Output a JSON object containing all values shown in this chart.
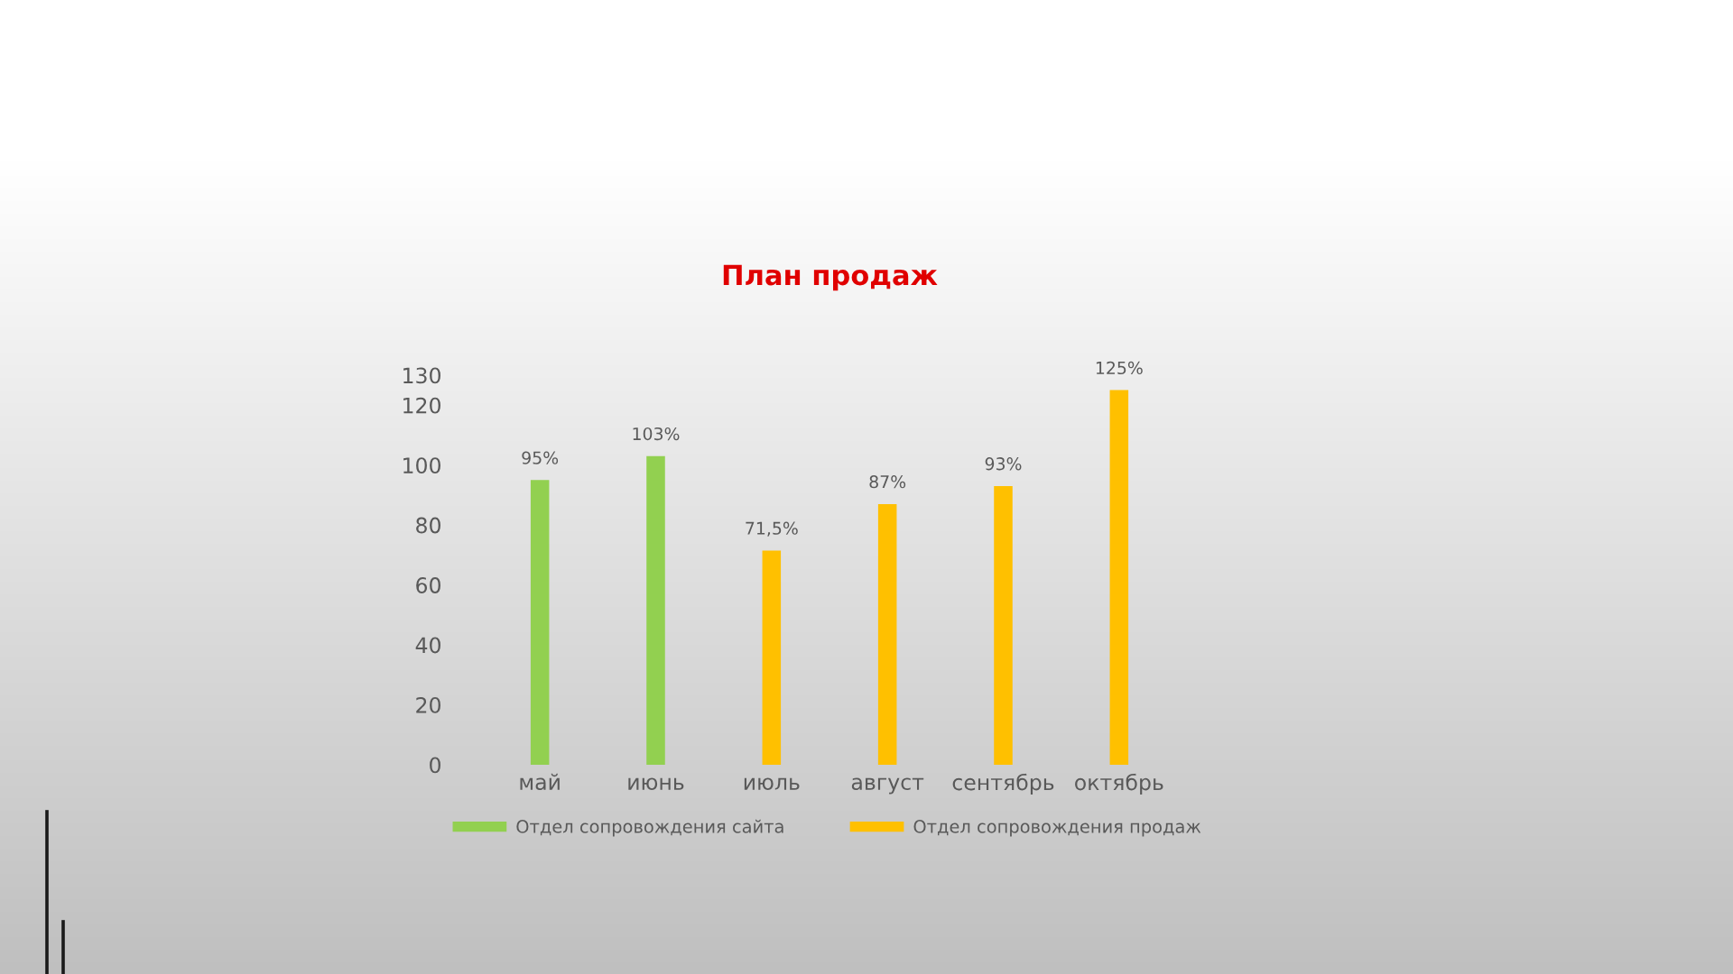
{
  "chart_data": {
    "type": "bar",
    "title": "План продаж",
    "categories": [
      "май",
      "июнь",
      "июль",
      "август",
      "сентябрь",
      "октябрь"
    ],
    "series": [
      {
        "name": "Отдел сопровождения сайта",
        "color": "#92d050",
        "values": [
          95,
          103,
          null,
          null,
          null,
          null
        ],
        "value_labels": [
          "95%",
          "103%",
          null,
          null,
          null,
          null
        ]
      },
      {
        "name": "Отдел сопровождения продаж",
        "color": "#ffc000",
        "values": [
          null,
          null,
          71.5,
          87,
          93,
          125
        ],
        "value_labels": [
          null,
          null,
          "71,5%",
          "87%",
          "93%",
          "125%"
        ]
      }
    ],
    "ylim": [
      0,
      130
    ],
    "yticks": [
      0,
      20,
      40,
      60,
      80,
      100,
      120,
      130
    ],
    "grid": false,
    "legend": "bottom"
  }
}
